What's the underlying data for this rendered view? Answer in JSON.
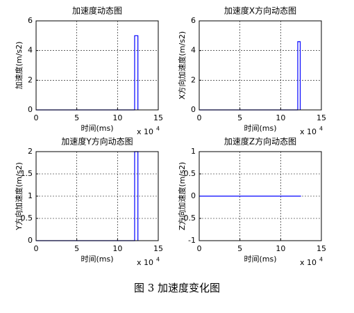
{
  "chart_data": [
    {
      "type": "line",
      "title": "加速度动态图",
      "xlabel": "时间(ms)",
      "ylabel": "加速度(m/s2)",
      "x_scale": {
        "label": "x 10",
        "exponent": "4"
      },
      "x": [
        0,
        12.1,
        12.1,
        12.5,
        12.5
      ],
      "values": [
        0,
        0,
        5,
        5,
        0
      ],
      "color": "#0000ff",
      "xlim": [
        0,
        15
      ],
      "xticks": [
        0,
        5,
        10,
        15
      ],
      "ylim": [
        0,
        6
      ],
      "yticks": [
        0,
        2,
        4,
        6
      ],
      "grid": true
    },
    {
      "type": "line",
      "title": "加速度X方向动态图",
      "xlabel": "时间(ms)",
      "ylabel": "X方向加速度(m/s2)",
      "x_scale": {
        "label": "x 10",
        "exponent": "4"
      },
      "x": [
        0,
        12.1,
        12.1,
        12.4,
        12.4
      ],
      "values": [
        0,
        0,
        4.6,
        4.6,
        0
      ],
      "color": "#0000ff",
      "xlim": [
        0,
        15
      ],
      "xticks": [
        0,
        5,
        10,
        15
      ],
      "ylim": [
        0,
        6
      ],
      "yticks": [
        0,
        2,
        4,
        6
      ],
      "grid": true
    },
    {
      "type": "line",
      "title": "加速度Y方向动态图",
      "xlabel": "时间(ms)",
      "ylabel": "Y方向加速度(m/s2)",
      "x_scale": {
        "label": "x 10",
        "exponent": "4"
      },
      "x": [
        0,
        12.1,
        12.1,
        12.5,
        12.5
      ],
      "values": [
        0,
        0,
        2,
        2,
        0
      ],
      "color": "#0000ff",
      "xlim": [
        0,
        15
      ],
      "xticks": [
        0,
        5,
        10,
        15
      ],
      "ylim": [
        0,
        2
      ],
      "yticks": [
        0,
        0.5,
        1,
        1.5,
        2
      ],
      "grid": true
    },
    {
      "type": "line",
      "title": "加速度Z方向动态图",
      "xlabel": "时间(ms)",
      "ylabel": "Z方向加速度(m/s2)",
      "x_scale": {
        "label": "x 10",
        "exponent": "4"
      },
      "x": [
        0,
        12.5
      ],
      "values": [
        0,
        0
      ],
      "color": "#0000ff",
      "xlim": [
        0,
        15
      ],
      "xticks": [
        0,
        5,
        10,
        15
      ],
      "ylim": [
        -1,
        1
      ],
      "yticks": [
        -1,
        -0.5,
        0,
        0.5,
        1
      ],
      "grid": true
    }
  ],
  "caption": "图 3  加速度变化图"
}
